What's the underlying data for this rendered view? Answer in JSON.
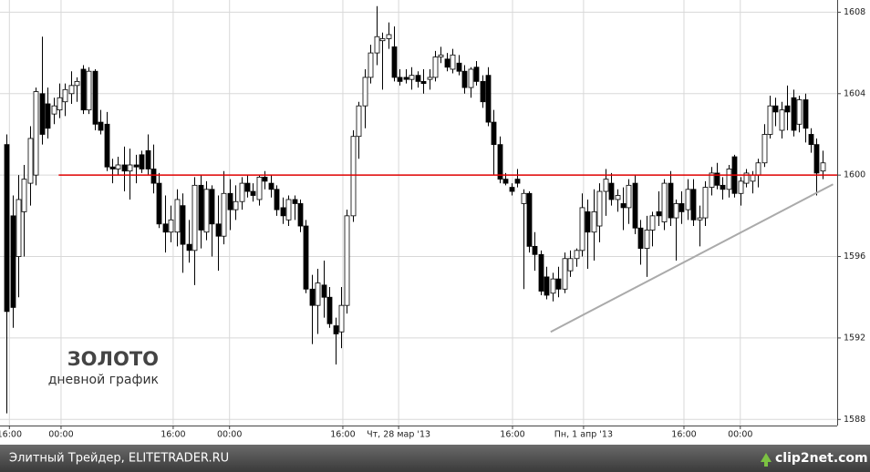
{
  "chart_data": {
    "type": "candlestick",
    "title": "ЗОЛОТО",
    "subtitle": "дневной график",
    "footer": "Элитный Трейдер, ELITETRADER.RU",
    "watermark": "clip2net.com",
    "ylim": [
      1587.7,
      1608.6
    ],
    "yticks": [
      1588,
      1592,
      1596,
      1600,
      1604,
      1608
    ],
    "xlim": [
      -1.1,
      141.5
    ],
    "xticks": [
      {
        "value": 0.5,
        "label": "16:00"
      },
      {
        "value": 9.3,
        "label": "00:00"
      },
      {
        "value": 28.4,
        "label": "16:00"
      },
      {
        "value": 38.0,
        "label": "00:00"
      },
      {
        "value": 57.3,
        "label": "16:00"
      },
      {
        "value": 66.8,
        "label": "Чт, 28 мар '13"
      },
      {
        "value": 86.2,
        "label": "16:00"
      },
      {
        "value": 98.3,
        "label": "Пн, 1 апр '13"
      },
      {
        "value": 115.4,
        "label": "16:00"
      },
      {
        "value": 125.0,
        "label": "00:00"
      }
    ],
    "grid": true,
    "up_color": "#ffffff",
    "down_color": "#000000",
    "reference_line": {
      "y": 1600,
      "x": [
        8.9,
        141.5
      ],
      "color": "#e00000"
    },
    "trend_line": {
      "x": [
        92.7,
        140.8
      ],
      "y": [
        1592.3,
        1599.55
      ],
      "color": "#aaaaaa"
    },
    "candles": [
      [
        1601.5,
        1602,
        1588.3,
        1593.3
      ],
      [
        1598,
        1599,
        1592.5,
        1593.5
      ],
      [
        1596,
        1600,
        1594,
        1598.8
      ],
      [
        1598.2,
        1600.5,
        1596,
        1599.8
      ],
      [
        1599.6,
        1602.4,
        1598.5,
        1601.8
      ],
      [
        1600,
        1604.3,
        1599.5,
        1604.1
      ],
      [
        1604,
        1606.8,
        1601.5,
        1602
      ],
      [
        1603.5,
        1604.3,
        1601.8,
        1602.3
      ],
      [
        1603,
        1603.8,
        1602.5,
        1603.4
      ],
      [
        1603.2,
        1604.5,
        1602.8,
        1603.8
      ],
      [
        1603.6,
        1604.5,
        1602.9,
        1604.2
      ],
      [
        1604,
        1605.1,
        1603.5,
        1604.4
      ],
      [
        1604.4,
        1604.8,
        1603.6,
        1604.6
      ],
      [
        1605.2,
        1605.4,
        1603,
        1603.2
      ],
      [
        1603.2,
        1605.3,
        1603,
        1605.1
      ],
      [
        1605.1,
        1605.2,
        1602.2,
        1602.5
      ],
      [
        1602.6,
        1603.2,
        1602,
        1602.2
      ],
      [
        1602.5,
        1603.1,
        1600.2,
        1600.4
      ],
      [
        1600.4,
        1600.8,
        1599.6,
        1600.3
      ],
      [
        1600.3,
        1600.9,
        1600,
        1600.5
      ],
      [
        1600.5,
        1601.4,
        1599.2,
        1600.2
      ],
      [
        1600.2,
        1601.3,
        1598.8,
        1600.5
      ],
      [
        1600.5,
        1601,
        1599.6,
        1600.4
      ],
      [
        1601,
        1601.2,
        1600.1,
        1600.3
      ],
      [
        1601.2,
        1602,
        1600,
        1600.3
      ],
      [
        1600.3,
        1601.5,
        1599.1,
        1599.6
      ],
      [
        1599.6,
        1600.1,
        1597.4,
        1597.6
      ],
      [
        1597.6,
        1599,
        1596.2,
        1597.2
      ],
      [
        1597.2,
        1598.5,
        1596.7,
        1597.8
      ],
      [
        1597.2,
        1599.3,
        1596.5,
        1598.8
      ],
      [
        1598.5,
        1599.1,
        1595.2,
        1596.6
      ],
      [
        1596.6,
        1597.8,
        1595.7,
        1596.3
      ],
      [
        1596.3,
        1599.9,
        1594.6,
        1599.5
      ],
      [
        1599.5,
        1600,
        1596.4,
        1597.3
      ],
      [
        1597.2,
        1599.7,
        1596.8,
        1599.3
      ],
      [
        1599.3,
        1599.5,
        1596,
        1597.6
      ],
      [
        1597.6,
        1599,
        1595.3,
        1597
      ],
      [
        1597,
        1600.2,
        1596.6,
        1599.1
      ],
      [
        1599.1,
        1599.8,
        1597.3,
        1598.3
      ],
      [
        1598.3,
        1599.5,
        1597.8,
        1598.7
      ],
      [
        1598.7,
        1599.9,
        1598.3,
        1599.6
      ],
      [
        1599.6,
        1600,
        1598.9,
        1599.2
      ],
      [
        1599.2,
        1599.6,
        1598.7,
        1599
      ],
      [
        1598.8,
        1600,
        1598.5,
        1599.9
      ],
      [
        1599.9,
        1600.2,
        1599.3,
        1599.7
      ],
      [
        1599.6,
        1600,
        1598.9,
        1599.3
      ],
      [
        1599.3,
        1599.5,
        1598,
        1598.3
      ],
      [
        1598.4,
        1598.9,
        1597.6,
        1598
      ],
      [
        1597.8,
        1599,
        1597.5,
        1598.8
      ],
      [
        1598.8,
        1599,
        1597.8,
        1598.6
      ],
      [
        1598.6,
        1598.8,
        1597.2,
        1597.5
      ],
      [
        1597.5,
        1597.8,
        1594.2,
        1594.4
      ],
      [
        1594.4,
        1595.1,
        1591.7,
        1593.6
      ],
      [
        1593.6,
        1595.4,
        1592.2,
        1594.7
      ],
      [
        1594.6,
        1595.8,
        1593,
        1594
      ],
      [
        1594,
        1594.5,
        1592.5,
        1592.7
      ],
      [
        1592.6,
        1593,
        1590.7,
        1592.2
      ],
      [
        1592.3,
        1594.5,
        1591.5,
        1593.6
      ],
      [
        1593.6,
        1598.3,
        1593.2,
        1598
      ],
      [
        1598,
        1602.2,
        1597.7,
        1601.9
      ],
      [
        1601.9,
        1603.6,
        1600.8,
        1603.4
      ],
      [
        1603.4,
        1605.2,
        1602.3,
        1604.8
      ],
      [
        1604.8,
        1606.4,
        1604.5,
        1606
      ],
      [
        1606,
        1608.3,
        1605.4,
        1606.8
      ],
      [
        1606.6,
        1607,
        1604.2,
        1606.7
      ],
      [
        1606.7,
        1607.5,
        1606.2,
        1606.9
      ],
      [
        1606.3,
        1607.3,
        1604.6,
        1604.8
      ],
      [
        1604.8,
        1605.2,
        1604.4,
        1604.6
      ],
      [
        1604.8,
        1605.2,
        1604.5,
        1604.7
      ],
      [
        1604.7,
        1605.3,
        1604.2,
        1604.9
      ],
      [
        1604.9,
        1605.1,
        1604.3,
        1604.6
      ],
      [
        1604.6,
        1605.2,
        1604,
        1604.5
      ],
      [
        1604.7,
        1605.2,
        1604.2,
        1604.8
      ],
      [
        1604.8,
        1606.1,
        1604.6,
        1605.8
      ],
      [
        1605.8,
        1606.3,
        1605.5,
        1605.9
      ],
      [
        1605.7,
        1606,
        1605.1,
        1605.3
      ],
      [
        1605.2,
        1606.2,
        1605,
        1605.9
      ],
      [
        1605.5,
        1605.9,
        1604.9,
        1605.1
      ],
      [
        1605.1,
        1605.4,
        1604,
        1604.3
      ],
      [
        1604.3,
        1605.3,
        1603.8,
        1605.2
      ],
      [
        1605.3,
        1605.6,
        1604.4,
        1604.6
      ],
      [
        1604.6,
        1604.9,
        1603.3,
        1603.6
      ],
      [
        1604.9,
        1605.3,
        1602.4,
        1602.6
      ],
      [
        1602.6,
        1603.2,
        1600,
        1601.5
      ],
      [
        1601.5,
        1601.9,
        1599.6,
        1599.8
      ],
      [
        1599.8,
        1600.1,
        1599.5,
        1599.6
      ],
      [
        1599.4,
        1599.6,
        1599,
        1599.2
      ],
      [
        1599.8,
        1600.3,
        1599.4,
        1599.6
      ],
      [
        1598.6,
        1599.3,
        1594.4,
        1599.1
      ],
      [
        1599.1,
        1599.2,
        1596.2,
        1596.5
      ],
      [
        1596.5,
        1597.2,
        1595.3,
        1596.1
      ],
      [
        1596.1,
        1596.3,
        1594.1,
        1594.3
      ],
      [
        1595,
        1595.5,
        1593.9,
        1594.1
      ],
      [
        1594.2,
        1595.2,
        1593.8,
        1594.9
      ],
      [
        1594.9,
        1595.5,
        1594,
        1594.4
      ],
      [
        1594.4,
        1596.2,
        1594.2,
        1595.9
      ],
      [
        1595.3,
        1596.3,
        1595,
        1595.9
      ],
      [
        1595.9,
        1596.4,
        1595.5,
        1596.3
      ],
      [
        1596.3,
        1599.1,
        1596,
        1598.4
      ],
      [
        1598.2,
        1598.8,
        1595.4,
        1597.2
      ],
      [
        1597.2,
        1599.3,
        1595.8,
        1598.2
      ],
      [
        1597.5,
        1599.6,
        1596.7,
        1599.2
      ],
      [
        1599.2,
        1600.3,
        1598,
        1599.8
      ],
      [
        1599.6,
        1600.1,
        1598.5,
        1598.8
      ],
      [
        1598.8,
        1599.3,
        1598.2,
        1599
      ],
      [
        1598.6,
        1599.4,
        1597.3,
        1598.4
      ],
      [
        1598.4,
        1599.8,
        1597.6,
        1599.5
      ],
      [
        1599.6,
        1600,
        1597.1,
        1597.4
      ],
      [
        1597.4,
        1597.8,
        1595.6,
        1596.4
      ],
      [
        1596.4,
        1598,
        1595,
        1597.3
      ],
      [
        1597.3,
        1598.2,
        1596.5,
        1598
      ],
      [
        1598.2,
        1599.2,
        1597.5,
        1598
      ],
      [
        1597.7,
        1599.8,
        1597.3,
        1599.6
      ],
      [
        1599.6,
        1600.2,
        1597.5,
        1597.9
      ],
      [
        1597.9,
        1598.8,
        1595.8,
        1598.6
      ],
      [
        1598.6,
        1599.2,
        1597.6,
        1598.2
      ],
      [
        1598.3,
        1599.8,
        1597.8,
        1599.3
      ],
      [
        1599.3,
        1599.8,
        1597.5,
        1597.8
      ],
      [
        1597.8,
        1598.5,
        1596.5,
        1597.9
      ],
      [
        1597.9,
        1599.7,
        1597.5,
        1599.4
      ],
      [
        1599.4,
        1600.4,
        1599,
        1600.1
      ],
      [
        1600.1,
        1600.6,
        1599.3,
        1599.5
      ],
      [
        1599.5,
        1599.9,
        1598.8,
        1599.3
      ],
      [
        1599.3,
        1600.5,
        1598.9,
        1600.3
      ],
      [
        1600.9,
        1601,
        1598.9,
        1599.1
      ],
      [
        1599.1,
        1599.9,
        1598.5,
        1599.7
      ],
      [
        1599.6,
        1600.3,
        1599.4,
        1600.1
      ],
      [
        1599.7,
        1600.2,
        1599.1,
        1600
      ],
      [
        1600,
        1600.8,
        1599.4,
        1600.6
      ],
      [
        1600.6,
        1602.5,
        1600.4,
        1602
      ],
      [
        1602,
        1603.9,
        1601.8,
        1603.4
      ],
      [
        1603.4,
        1603.8,
        1602.4,
        1603.1
      ],
      [
        1602.2,
        1603.6,
        1601.8,
        1603.2
      ],
      [
        1603.4,
        1604.4,
        1602.2,
        1603.1
      ],
      [
        1603.8,
        1604.2,
        1601.9,
        1602.2
      ],
      [
        1602.5,
        1603.9,
        1602.1,
        1603.7
      ],
      [
        1603.7,
        1604,
        1601.6,
        1602.3
      ],
      [
        1602,
        1602.3,
        1601.1,
        1601.5
      ],
      [
        1601.5,
        1601.8,
        1599,
        1600.1
      ],
      [
        1600.2,
        1601.2,
        1599.8,
        1600.6
      ]
    ]
  }
}
